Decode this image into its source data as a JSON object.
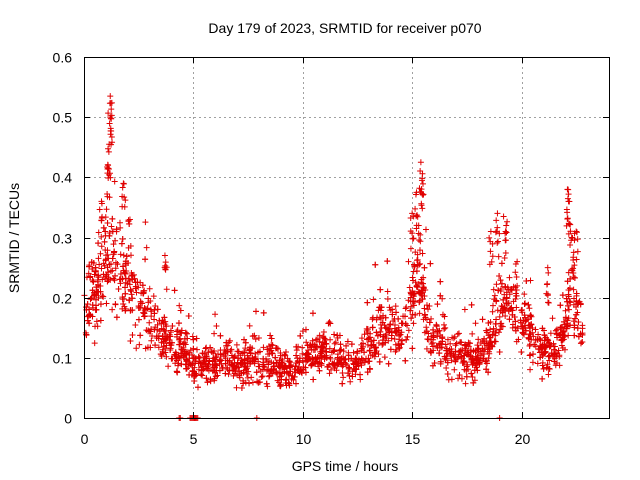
{
  "chart_data": {
    "type": "scatter",
    "title": "Day 179 of 2023, SRMTID for receiver p070",
    "xlabel": "GPS time / hours",
    "ylabel": "SRMTID / TECUs",
    "xlim": [
      0,
      24
    ],
    "ylim": [
      0,
      0.6
    ],
    "x_ticks": [
      0,
      5,
      10,
      15,
      20
    ],
    "x_tick_labels": [
      "0",
      "5",
      "10",
      "15",
      "20"
    ],
    "y_ticks": [
      0,
      0.1,
      0.2,
      0.3,
      0.4,
      0.5,
      0.6
    ],
    "y_tick_labels": [
      "0",
      "0.1",
      "0.2",
      "0.3",
      "0.4",
      "0.5",
      "0.6"
    ],
    "grid": true,
    "marker": "+",
    "color": "#e00000",
    "series": [
      {
        "name": "SRMTID",
        "profile_x": [
          0.0,
          0.3,
          0.6,
          0.9,
          1.1,
          1.4,
          1.7,
          2.0,
          2.3,
          2.6,
          3.0,
          3.4,
          3.8,
          4.2,
          4.6,
          5.0,
          5.5,
          6.0,
          6.5,
          7.0,
          7.5,
          8.0,
          8.5,
          9.0,
          9.5,
          10.0,
          10.5,
          11.0,
          11.5,
          12.0,
          12.5,
          13.0,
          13.5,
          14.0,
          14.5,
          14.8,
          15.1,
          15.4,
          15.7,
          16.0,
          16.5,
          17.0,
          17.5,
          18.0,
          18.5,
          18.8,
          19.2,
          19.6,
          20.0,
          20.4,
          20.8,
          21.2,
          21.6,
          22.0,
          22.3,
          22.6,
          22.8
        ],
        "profile_y": [
          0.17,
          0.18,
          0.22,
          0.26,
          0.28,
          0.27,
          0.24,
          0.22,
          0.2,
          0.19,
          0.17,
          0.15,
          0.13,
          0.12,
          0.11,
          0.09,
          0.09,
          0.09,
          0.1,
          0.09,
          0.09,
          0.09,
          0.09,
          0.08,
          0.08,
          0.09,
          0.1,
          0.11,
          0.1,
          0.09,
          0.09,
          0.12,
          0.14,
          0.14,
          0.14,
          0.16,
          0.22,
          0.24,
          0.16,
          0.13,
          0.12,
          0.11,
          0.1,
          0.1,
          0.11,
          0.17,
          0.2,
          0.17,
          0.16,
          0.14,
          0.12,
          0.11,
          0.12,
          0.15,
          0.22,
          0.17,
          0.14
        ],
        "peaks": [
          {
            "x": 1.2,
            "y": 0.535
          },
          {
            "x": 1.2,
            "y": 0.5
          },
          {
            "x": 1.15,
            "y": 0.455
          },
          {
            "x": 1.1,
            "y": 0.42
          },
          {
            "x": 1.8,
            "y": 0.39
          },
          {
            "x": 0.8,
            "y": 0.36
          },
          {
            "x": 2.1,
            "y": 0.33
          },
          {
            "x": 3.7,
            "y": 0.27
          },
          {
            "x": 15.4,
            "y": 0.425
          },
          {
            "x": 15.45,
            "y": 0.395
          },
          {
            "x": 15.2,
            "y": 0.375
          },
          {
            "x": 15.0,
            "y": 0.34
          },
          {
            "x": 15.3,
            "y": 0.32
          },
          {
            "x": 18.9,
            "y": 0.34
          },
          {
            "x": 19.3,
            "y": 0.32
          },
          {
            "x": 18.6,
            "y": 0.31
          },
          {
            "x": 19.8,
            "y": 0.26
          },
          {
            "x": 22.1,
            "y": 0.38
          },
          {
            "x": 22.15,
            "y": 0.36
          },
          {
            "x": 22.5,
            "y": 0.31
          },
          {
            "x": 22.3,
            "y": 0.3
          },
          {
            "x": 21.2,
            "y": 0.25
          }
        ],
        "zero_points_x": [
          4.35,
          4.4,
          4.85,
          4.9,
          4.95,
          5.0,
          5.05,
          5.1,
          5.15,
          5.2,
          7.9,
          19.0
        ]
      }
    ]
  }
}
